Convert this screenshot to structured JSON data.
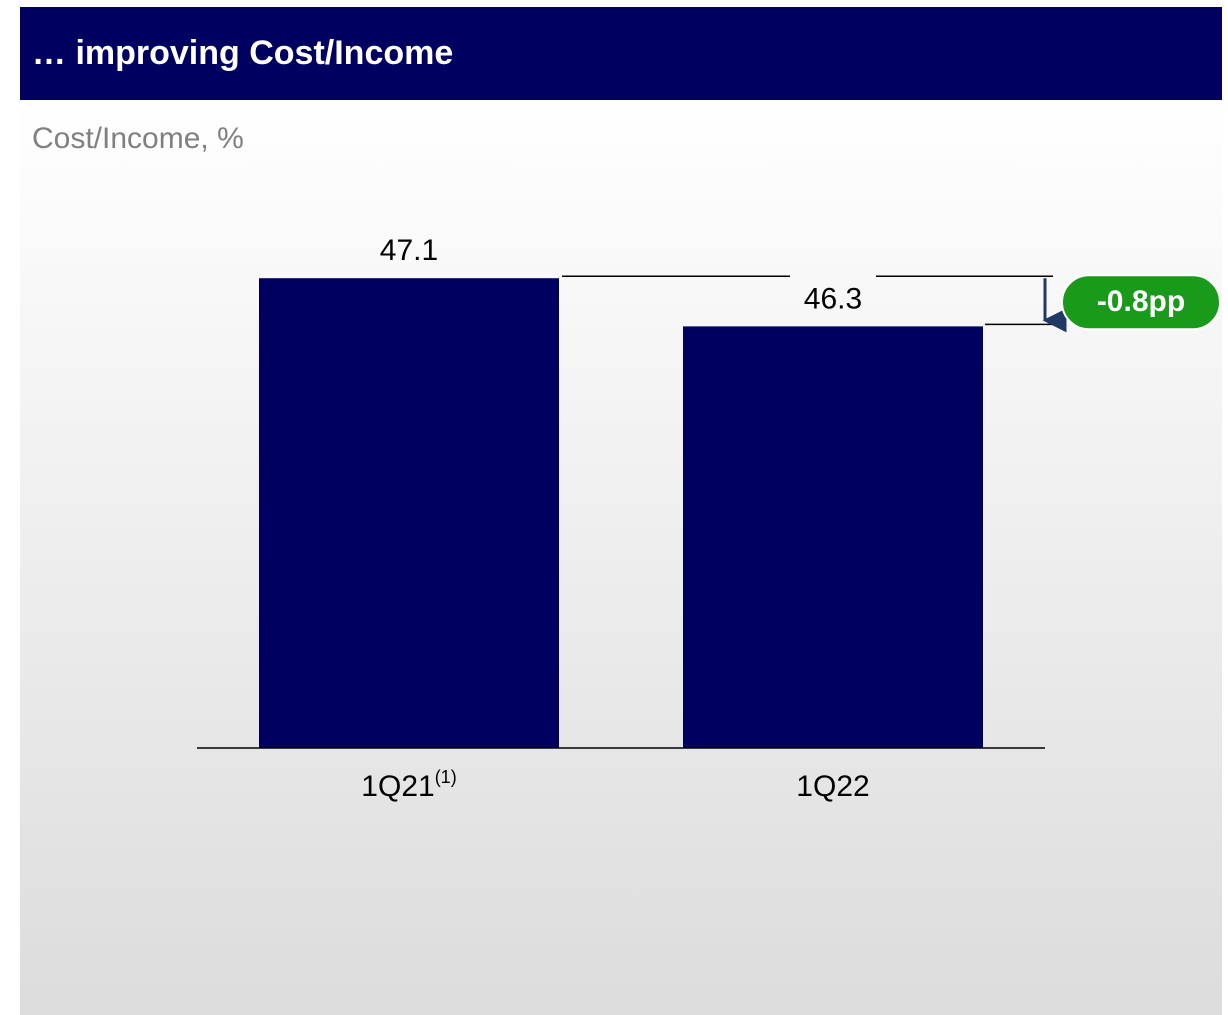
{
  "chart_data": {
    "type": "bar",
    "title": "… improving Cost/Income",
    "subtitle": "Cost/Income, %",
    "categories": [
      "1Q21",
      "1Q22"
    ],
    "category_superscripts": [
      "(1)",
      null
    ],
    "values": [
      47.1,
      46.3
    ],
    "color": "#000060",
    "ylim": [
      39.3,
      48
    ],
    "annotation": "-0.8pp",
    "annotation_color": "#1a9a1a"
  }
}
